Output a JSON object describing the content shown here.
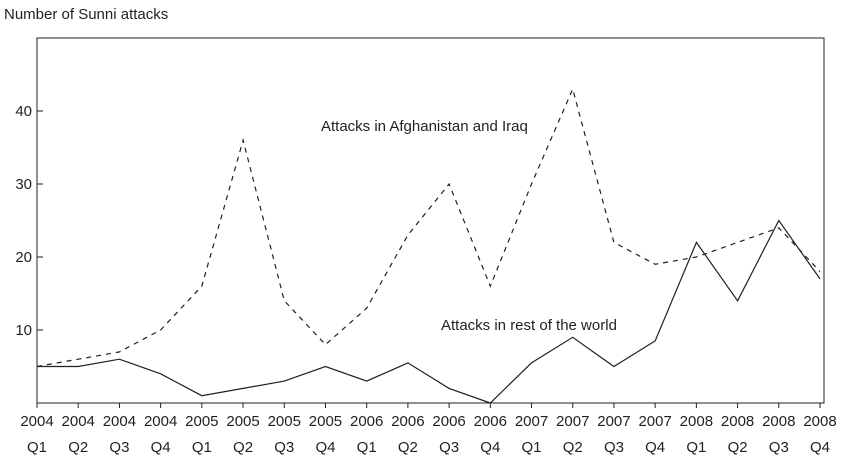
{
  "chart_data": {
    "type": "line",
    "title": "",
    "ylabel": "Number of Sunni attacks",
    "xlabel": "",
    "ylim": [
      0,
      50
    ],
    "yticks": [
      10,
      20,
      30,
      40
    ],
    "grid": false,
    "categories": [
      [
        "2004",
        "Q1"
      ],
      [
        "2004",
        "Q2"
      ],
      [
        "2004",
        "Q3"
      ],
      [
        "2004",
        "Q4"
      ],
      [
        "2005",
        "Q1"
      ],
      [
        "2005",
        "Q2"
      ],
      [
        "2005",
        "Q3"
      ],
      [
        "2005",
        "Q4"
      ],
      [
        "2006",
        "Q1"
      ],
      [
        "2006",
        "Q2"
      ],
      [
        "2006",
        "Q3"
      ],
      [
        "2006",
        "Q4"
      ],
      [
        "2007",
        "Q1"
      ],
      [
        "2007",
        "Q2"
      ],
      [
        "2007",
        "Q3"
      ],
      [
        "2007",
        "Q4"
      ],
      [
        "2008",
        "Q1"
      ],
      [
        "2008",
        "Q2"
      ],
      [
        "2008",
        "Q3"
      ],
      [
        "2008",
        "Q4"
      ]
    ],
    "series": [
      {
        "name": "Attacks in Afghanistan and Iraq",
        "style": "dashed",
        "values": [
          5,
          6,
          7,
          10,
          16,
          36,
          14,
          8,
          13,
          23,
          30,
          16,
          30,
          43,
          22,
          19,
          20,
          22,
          24,
          18
        ]
      },
      {
        "name": "Attacks in rest of the world",
        "style": "solid",
        "values": [
          5,
          5,
          6,
          4,
          1,
          2,
          3,
          5,
          3,
          5.5,
          2,
          0,
          5.5,
          9,
          5,
          8.5,
          22,
          14,
          25,
          17
        ]
      }
    ],
    "color": "#231f20"
  }
}
